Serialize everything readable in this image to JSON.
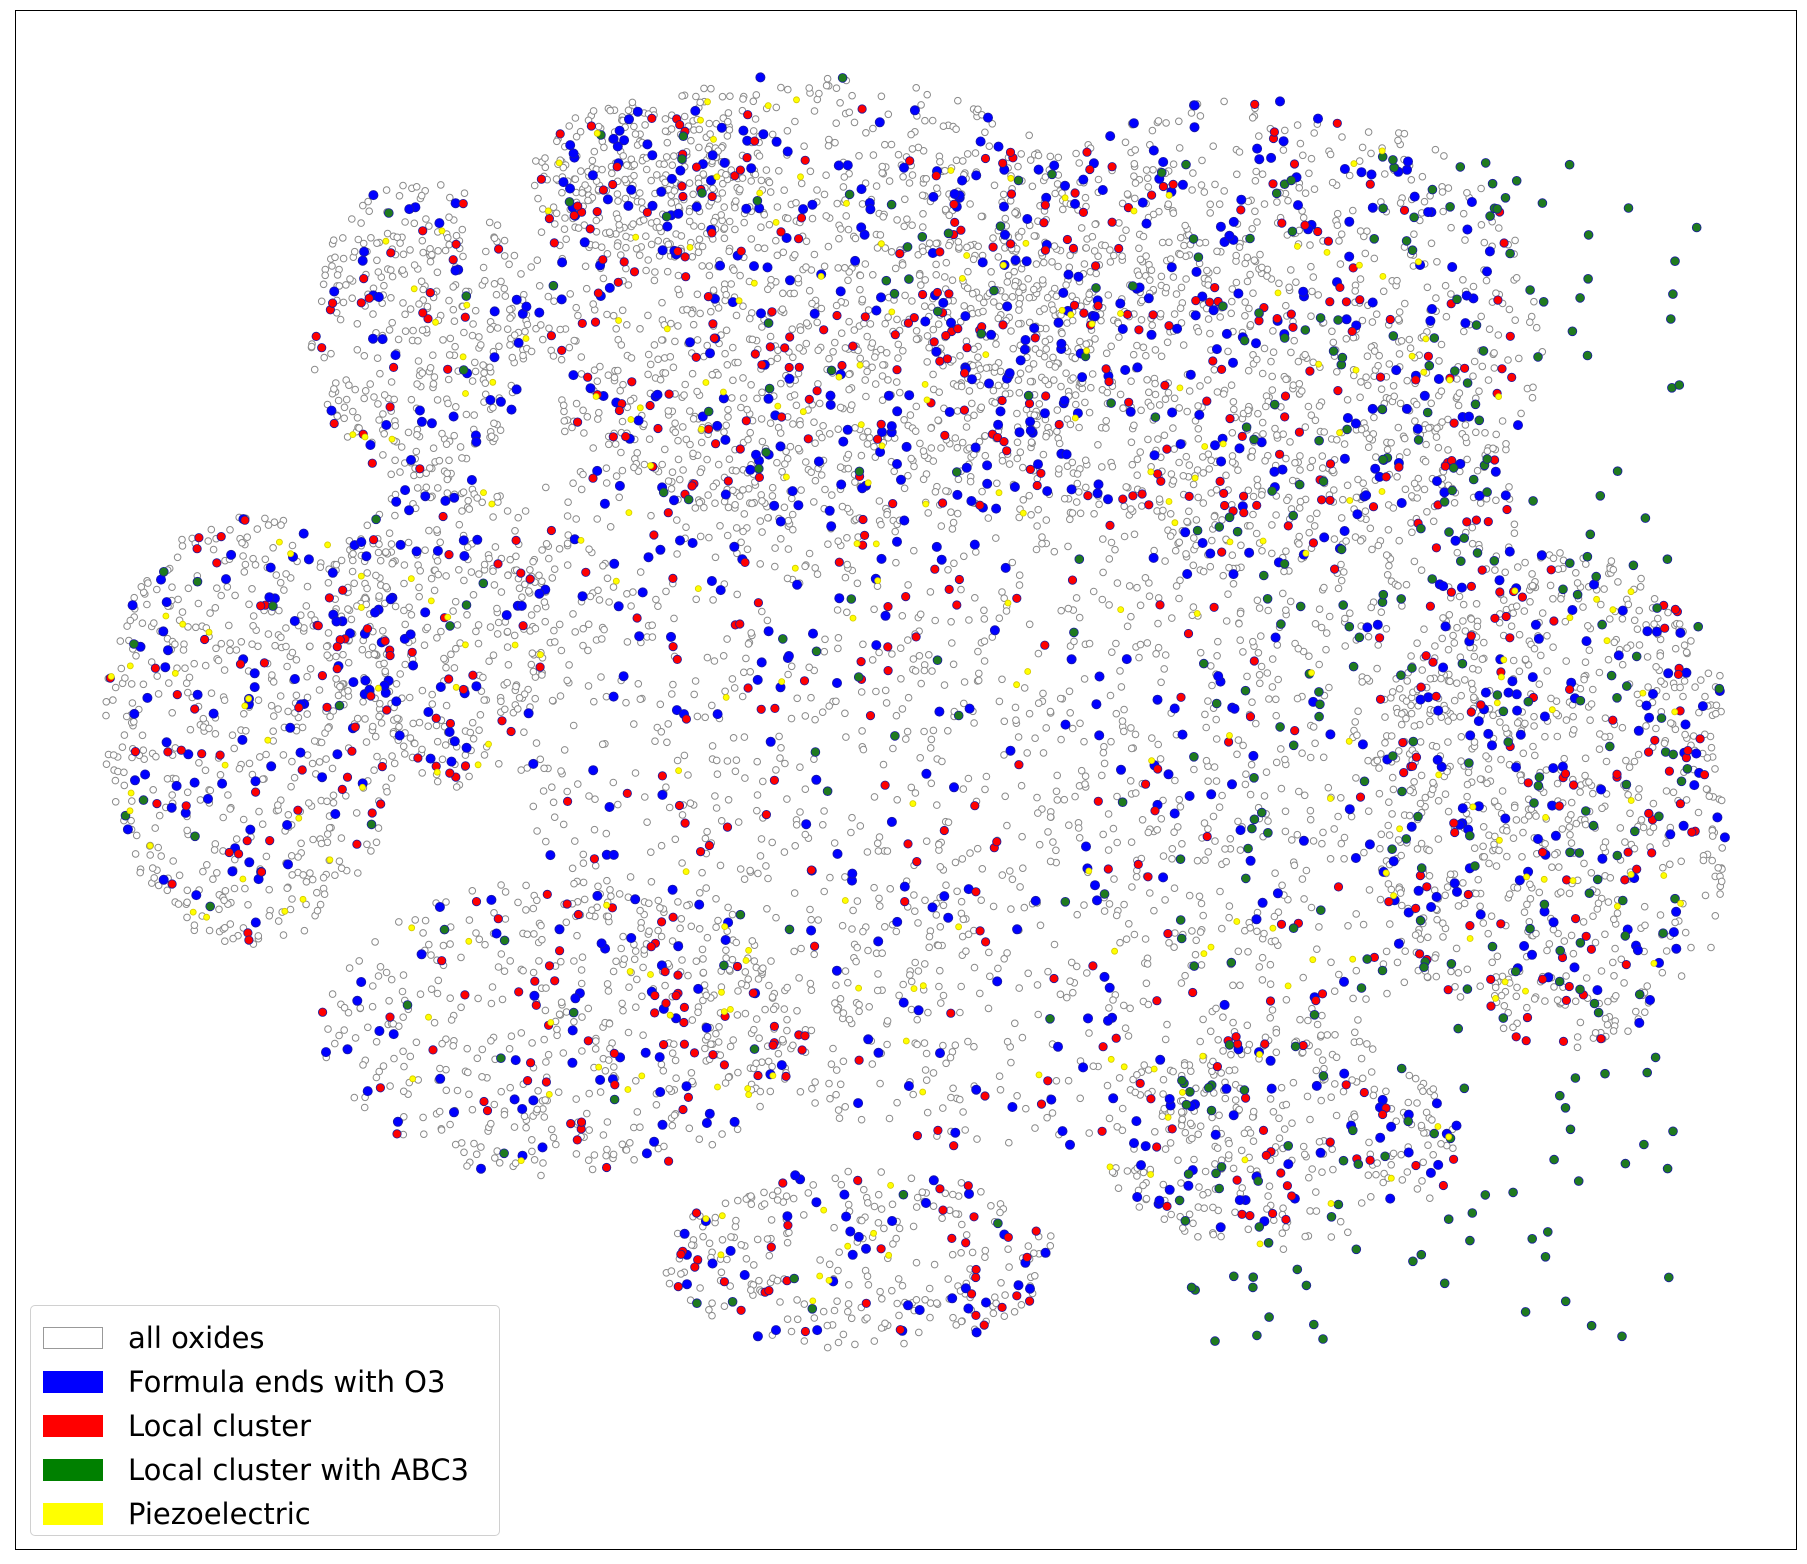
{
  "chart_data": {
    "type": "scatter",
    "title": "",
    "xlabel": "",
    "ylabel": "",
    "axes_visible": false,
    "grid": false,
    "legend_position": "lower-left",
    "legend": [
      {
        "label": "all oxides",
        "fill": "#ffffff",
        "edge": "#999999"
      },
      {
        "label": "Formula ends with O3",
        "fill": "#0000ff",
        "edge": "#0000ff"
      },
      {
        "label": "Local cluster",
        "fill": "#ff0000",
        "edge": "#ff0000"
      },
      {
        "label": "Local cluster with ABC3",
        "fill": "#008000",
        "edge": "#008000"
      },
      {
        "label": "Piezoelectric",
        "fill": "#ffff00",
        "edge": "#ffff00"
      }
    ],
    "series": [
      {
        "name": "all oxides",
        "color": "#ffffff",
        "edgecolor": "#808080",
        "marker": "o",
        "approx_points": 30000,
        "extent": {
          "x": [
            80,
            1720
          ],
          "y": [
            70,
            1470
          ]
        }
      },
      {
        "name": "Formula ends with O3",
        "color": "#0000ff",
        "marker": "o",
        "approx_points": 2500
      },
      {
        "name": "Local cluster",
        "color": "#ff0000",
        "marker": "o",
        "approx_points": 1800
      },
      {
        "name": "Local cluster with ABC3",
        "color": "#008000",
        "marker": "o",
        "approx_points": 900
      },
      {
        "name": "Piezoelectric",
        "color": "#ffff00",
        "marker": "o",
        "approx_points": 600
      }
    ]
  }
}
